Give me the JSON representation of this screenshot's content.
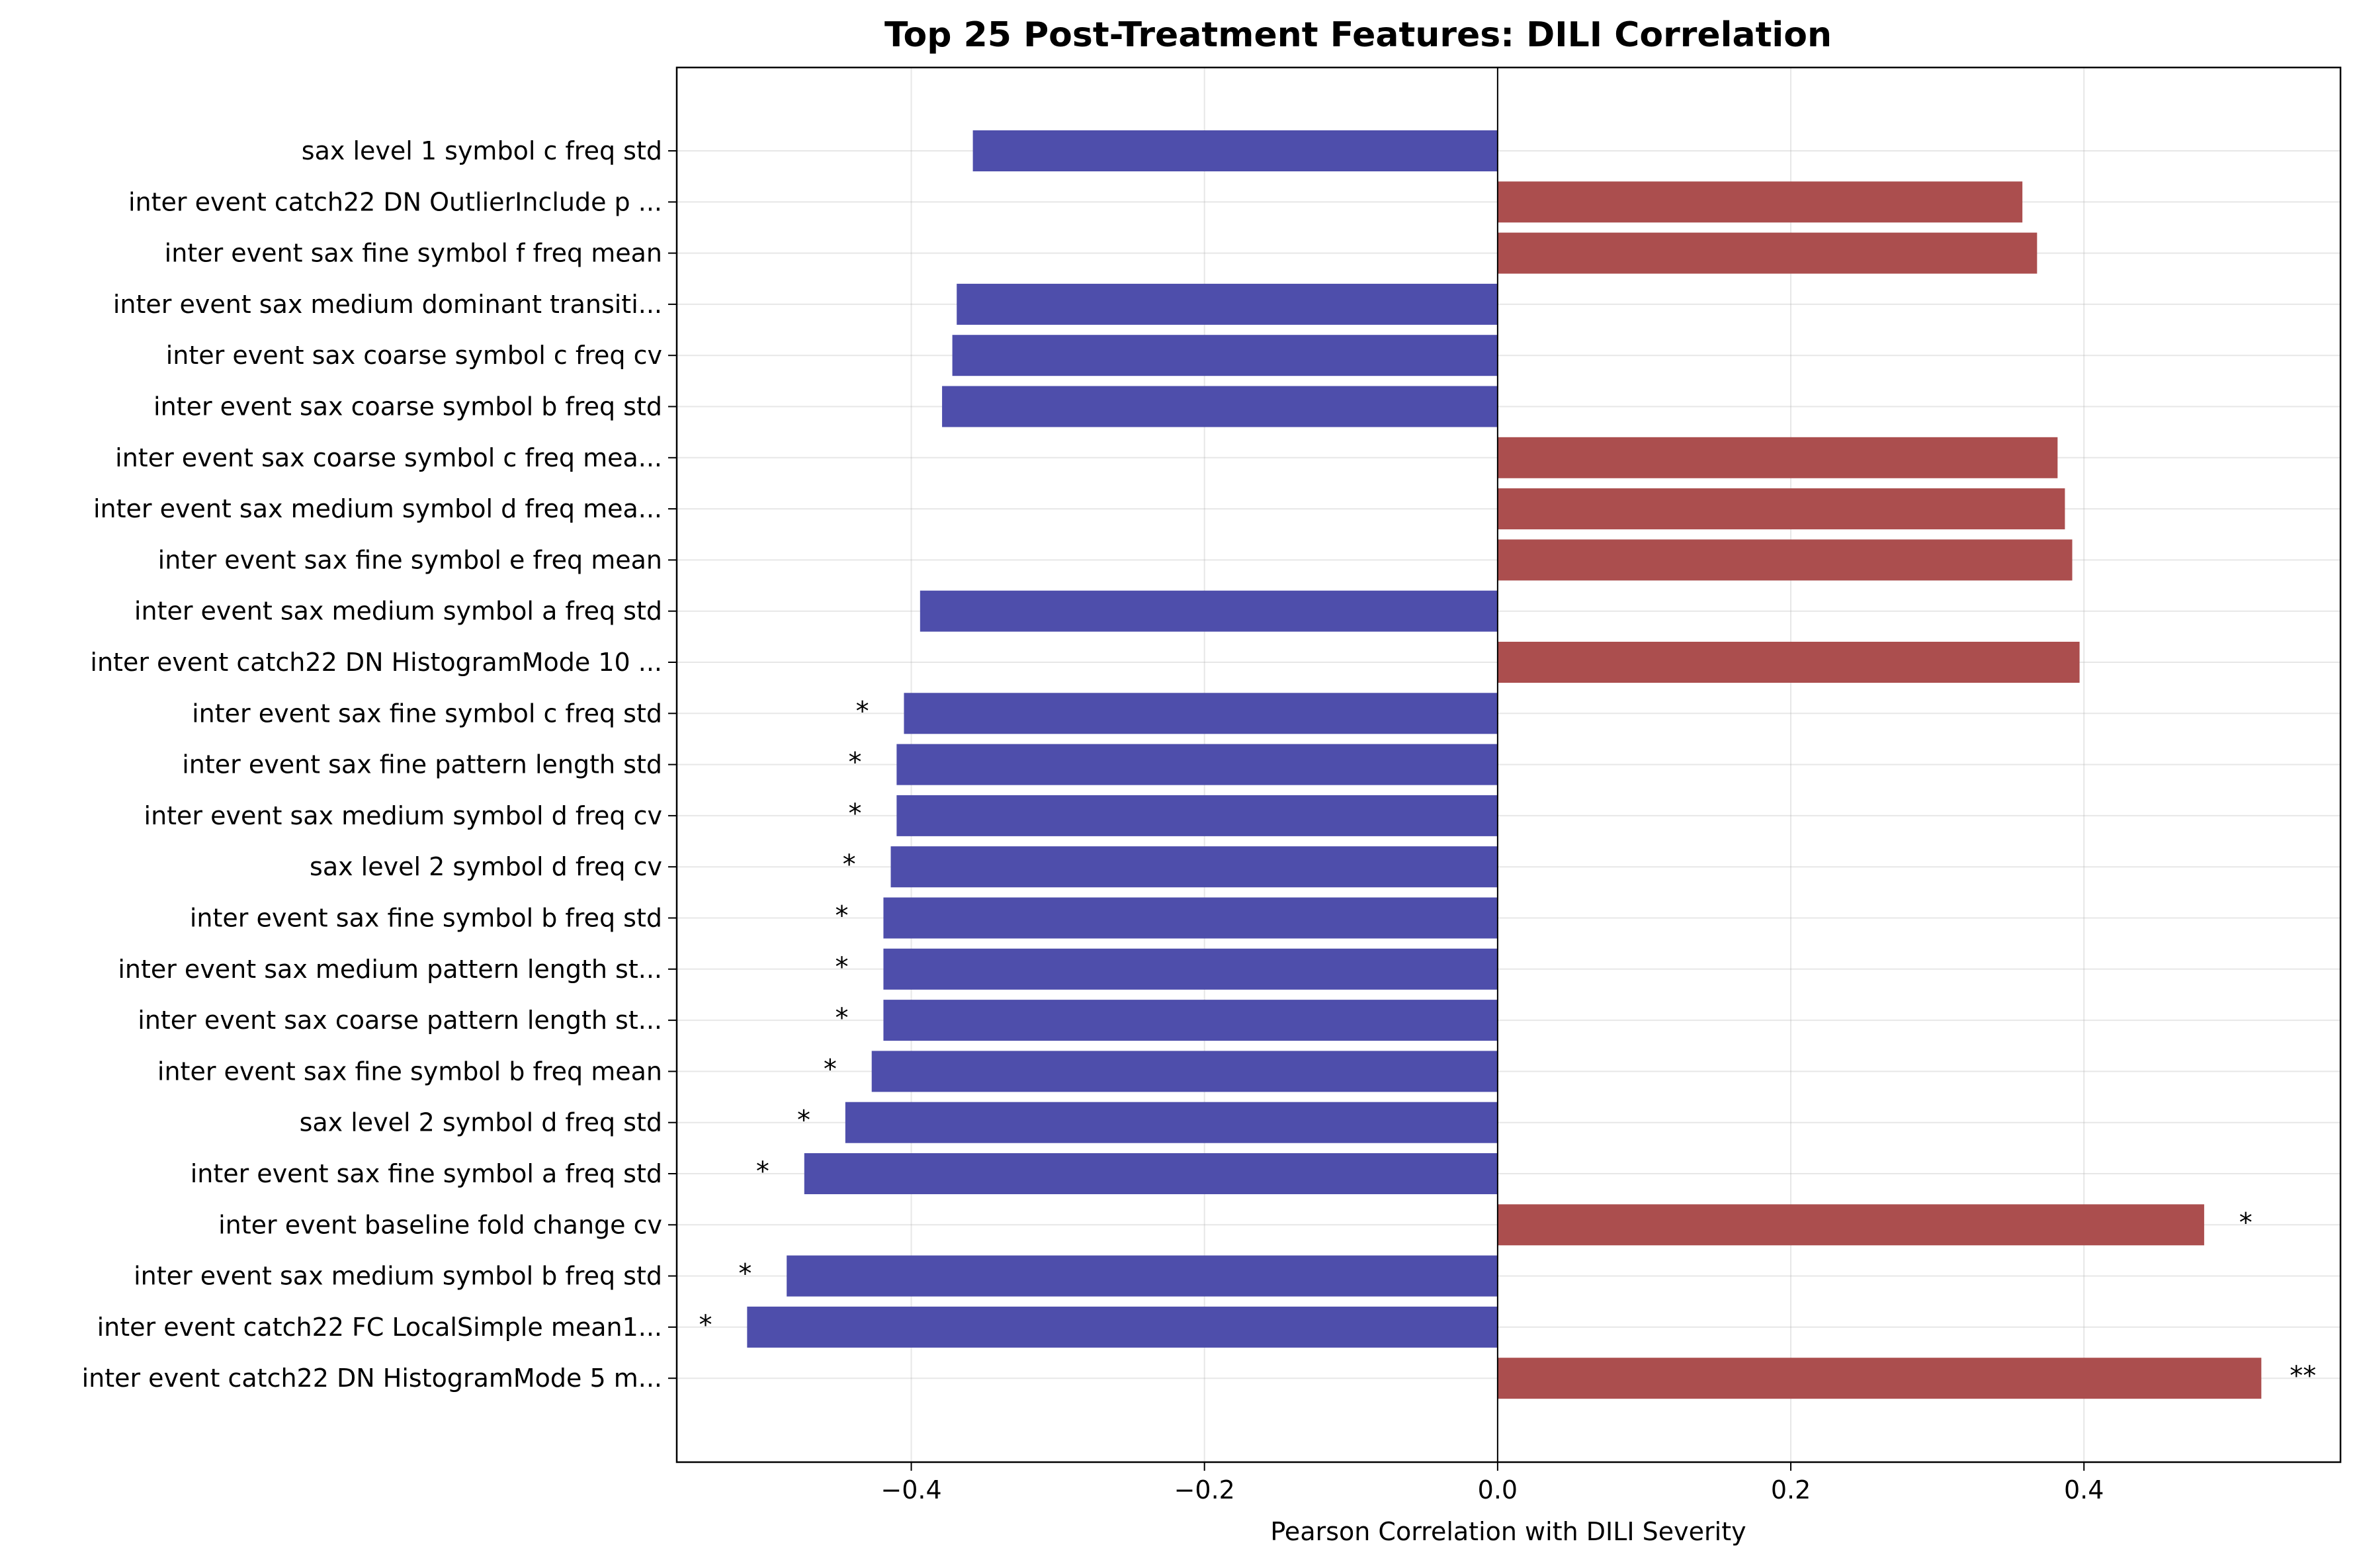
{
  "chart_data": {
    "type": "bar",
    "orientation": "horizontal",
    "title": "Top 25 Post-Treatment Features: DILI Correlation",
    "xlabel": "Pearson Correlation with DILI Severity",
    "ylabel": "",
    "xlim": [
      -0.56,
      0.575
    ],
    "xticks": [
      -0.4,
      -0.2,
      0.0,
      0.2,
      0.4
    ],
    "xtick_labels": [
      "−0.4",
      "−0.2",
      "0.0",
      "0.2",
      "0.4"
    ],
    "grid": true,
    "colors": {
      "positive": "#a94a4a",
      "negative": "#4a4aa9"
    },
    "bars": [
      {
        "label": "sax level 1 symbol c freq std",
        "value": -0.358,
        "sig": ""
      },
      {
        "label": "inter event catch22 DN OutlierInclude p ...",
        "value": 0.358,
        "sig": ""
      },
      {
        "label": "inter event sax fine symbol f freq mean",
        "value": 0.368,
        "sig": ""
      },
      {
        "label": "inter event sax medium dominant transiti...",
        "value": -0.369,
        "sig": ""
      },
      {
        "label": "inter event sax coarse symbol c freq cv",
        "value": -0.372,
        "sig": ""
      },
      {
        "label": "inter event sax coarse symbol b freq std",
        "value": -0.379,
        "sig": ""
      },
      {
        "label": "inter event sax coarse symbol c freq mea...",
        "value": 0.382,
        "sig": ""
      },
      {
        "label": "inter event sax medium symbol d freq mea...",
        "value": 0.387,
        "sig": ""
      },
      {
        "label": "inter event sax fine symbol e freq mean",
        "value": 0.392,
        "sig": ""
      },
      {
        "label": "inter event sax medium symbol a freq std",
        "value": -0.394,
        "sig": ""
      },
      {
        "label": "inter event catch22 DN HistogramMode 10 ...",
        "value": 0.397,
        "sig": ""
      },
      {
        "label": "inter event sax fine symbol c freq std",
        "value": -0.405,
        "sig": "*"
      },
      {
        "label": "inter event sax fine pattern length std",
        "value": -0.41,
        "sig": "*"
      },
      {
        "label": "inter event sax medium symbol d freq cv",
        "value": -0.41,
        "sig": "*"
      },
      {
        "label": "sax level 2 symbol d freq cv",
        "value": -0.414,
        "sig": "*"
      },
      {
        "label": "inter event sax fine symbol b freq std",
        "value": -0.419,
        "sig": "*"
      },
      {
        "label": "inter event sax medium pattern length st...",
        "value": -0.419,
        "sig": "*"
      },
      {
        "label": "inter event sax coarse pattern length st...",
        "value": -0.419,
        "sig": "*"
      },
      {
        "label": "inter event sax fine symbol b freq mean",
        "value": -0.427,
        "sig": "*"
      },
      {
        "label": "sax level 2 symbol d freq std",
        "value": -0.445,
        "sig": "*"
      },
      {
        "label": "inter event sax fine symbol a freq std",
        "value": -0.473,
        "sig": "*"
      },
      {
        "label": "inter event baseline fold change cv",
        "value": 0.482,
        "sig": "*"
      },
      {
        "label": "inter event sax medium symbol b freq std",
        "value": -0.485,
        "sig": "*"
      },
      {
        "label": "inter event catch22 FC LocalSimple mean1...",
        "value": -0.512,
        "sig": "*"
      },
      {
        "label": "inter event catch22 DN HistogramMode 5 m...",
        "value": 0.521,
        "sig": "**"
      }
    ]
  }
}
